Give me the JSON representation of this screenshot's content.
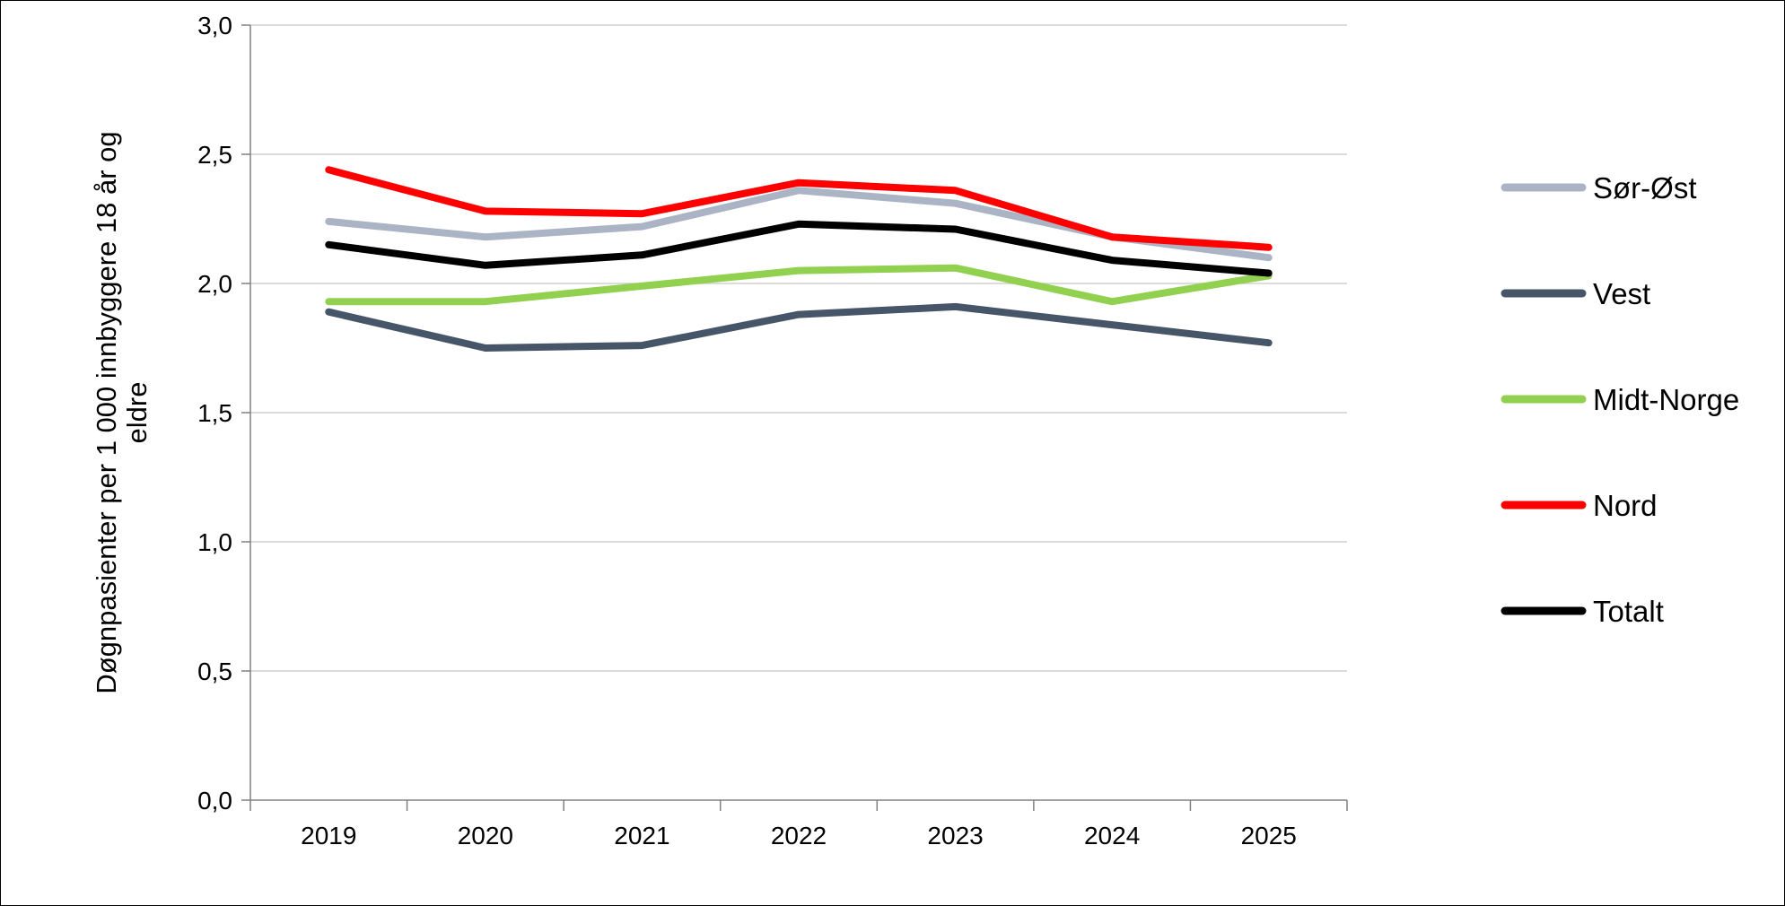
{
  "chart_data": {
    "type": "line",
    "categories": [
      "2019",
      "2020",
      "2021",
      "2022",
      "2023",
      "2024",
      "2025"
    ],
    "ylabel_lines": [
      "Døgnpasienter per 1 000  innbyggere 18 år og",
      "eldre"
    ],
    "ylim": [
      0,
      3.0
    ],
    "yticks": [
      0,
      0.5,
      1.0,
      1.5,
      2.0,
      2.5,
      3.0
    ],
    "ytick_labels": [
      "0,0",
      "0,5",
      "1,0",
      "1,5",
      "2,0",
      "2,5",
      "3,0"
    ],
    "grid": true,
    "legend_position": "right",
    "series": [
      {
        "name": "Sør-Øst",
        "color": "#aab4c4",
        "values": [
          2.24,
          2.18,
          2.22,
          2.36,
          2.31,
          2.18,
          2.1
        ]
      },
      {
        "name": "Vest",
        "color": "#475569",
        "values": [
          1.89,
          1.75,
          1.76,
          1.88,
          1.91,
          1.84,
          1.77
        ]
      },
      {
        "name": "Midt-Norge",
        "color": "#92d050",
        "values": [
          1.93,
          1.93,
          1.99,
          2.05,
          2.06,
          1.93,
          2.03
        ]
      },
      {
        "name": "Nord",
        "color": "#ff0000",
        "values": [
          2.44,
          2.28,
          2.27,
          2.39,
          2.36,
          2.18,
          2.14
        ]
      },
      {
        "name": "Totalt",
        "color": "#000000",
        "values": [
          2.15,
          2.07,
          2.11,
          2.23,
          2.21,
          2.09,
          2.04
        ]
      }
    ]
  }
}
